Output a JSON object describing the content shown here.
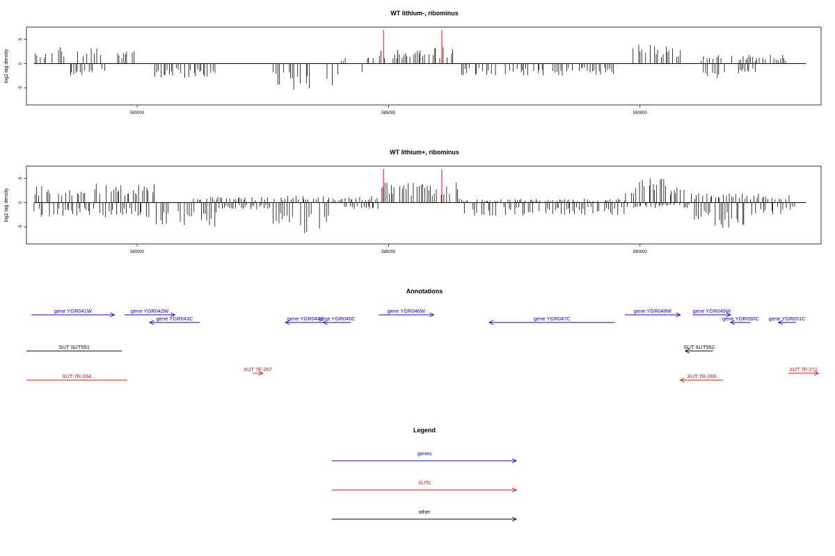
{
  "chart_data": [
    {
      "type": "bar",
      "title": "WT lithium-, ribominus",
      "ylabel": "log2 tag density",
      "xlim": [
        577800,
        593600
      ],
      "ylim": [
        -8.5,
        7.5
      ],
      "x_ticks": [
        580000,
        585000,
        590000
      ],
      "y_ticks": [
        5,
        0,
        -5
      ],
      "markers": [
        584900,
        586060
      ],
      "marker_color": "#ff0000",
      "segments": [
        {
          "start": 577950,
          "end": 578200,
          "strand": "+",
          "level": 2.0
        },
        {
          "start": 578300,
          "end": 578650,
          "strand": "+",
          "level": 2.6
        },
        {
          "start": 578650,
          "end": 579150,
          "strand": "-",
          "level": 1.8
        },
        {
          "start": 578800,
          "end": 579300,
          "strand": "+",
          "level": 2.6
        },
        {
          "start": 579300,
          "end": 579420,
          "strand": "-",
          "level": 2.0
        },
        {
          "start": 579600,
          "end": 579900,
          "strand": "+",
          "level": 2.0
        },
        {
          "start": 579850,
          "end": 580000,
          "strand": "+",
          "level": 2.4
        },
        {
          "start": 580250,
          "end": 581600,
          "strand": "-",
          "level": 2.1
        },
        {
          "start": 582700,
          "end": 583900,
          "strand": "-",
          "level": 3.9
        },
        {
          "start": 583900,
          "end": 584000,
          "strand": "-",
          "level": 2.5
        },
        {
          "start": 584050,
          "end": 584200,
          "strand": "+",
          "level": 1.0
        },
        {
          "start": 584450,
          "end": 584550,
          "strand": "-",
          "level": 2.2
        },
        {
          "start": 584550,
          "end": 584700,
          "strand": "+",
          "level": 1.6
        },
        {
          "start": 584800,
          "end": 586000,
          "strand": "+",
          "level": 2.3
        },
        {
          "start": 585900,
          "end": 586300,
          "strand": "+",
          "level": 2.5
        },
        {
          "start": 586400,
          "end": 589500,
          "strand": "-",
          "level": 1.8
        },
        {
          "start": 589800,
          "end": 590950,
          "strand": "+",
          "level": 2.9
        },
        {
          "start": 591200,
          "end": 591700,
          "strand": "-",
          "level": 2.4
        },
        {
          "start": 591200,
          "end": 592500,
          "strand": "+",
          "level": 1.3
        },
        {
          "start": 591900,
          "end": 592300,
          "strand": "-",
          "level": 1.5
        },
        {
          "start": 592500,
          "end": 593000,
          "strand": "+",
          "level": 1.3
        }
      ]
    },
    {
      "type": "bar",
      "title": "WT lithium+, ribominus",
      "ylabel": "log2 tag density",
      "xlim": [
        577800,
        593600
      ],
      "ylim": [
        -8.5,
        7.5
      ],
      "x_ticks": [
        580000,
        585000,
        590000
      ],
      "y_ticks": [
        5,
        0,
        -5
      ],
      "markers": [
        584900,
        586060
      ],
      "marker_color": "#ff0000",
      "segments": [
        {
          "start": 577950,
          "end": 580400,
          "strand": "+",
          "level": 2.8
        },
        {
          "start": 577950,
          "end": 580300,
          "strand": "-",
          "level": 2.2
        },
        {
          "start": 580300,
          "end": 581600,
          "strand": "-",
          "level": 3.6
        },
        {
          "start": 581100,
          "end": 582600,
          "strand": "+",
          "level": 0.9
        },
        {
          "start": 581600,
          "end": 582650,
          "strand": "-",
          "level": 1.0
        },
        {
          "start": 582650,
          "end": 584000,
          "strand": "-",
          "level": 4.6
        },
        {
          "start": 582700,
          "end": 584000,
          "strand": "+",
          "level": 1.0
        },
        {
          "start": 584000,
          "end": 584850,
          "strand": "-",
          "level": 1.0
        },
        {
          "start": 584000,
          "end": 584800,
          "strand": "+",
          "level": 1.0
        },
        {
          "start": 584800,
          "end": 586400,
          "strand": "+",
          "level": 3.0
        },
        {
          "start": 586400,
          "end": 589700,
          "strand": "-",
          "level": 1.9
        },
        {
          "start": 586400,
          "end": 589700,
          "strand": "+",
          "level": 0.6
        },
        {
          "start": 589700,
          "end": 591000,
          "strand": "+",
          "level": 3.6
        },
        {
          "start": 589700,
          "end": 591000,
          "strand": "-",
          "level": 0.8
        },
        {
          "start": 591000,
          "end": 592400,
          "strand": "-",
          "level": 3.8
        },
        {
          "start": 591000,
          "end": 593100,
          "strand": "+",
          "level": 1.4
        },
        {
          "start": 592400,
          "end": 593100,
          "strand": "-",
          "level": 1.8
        }
      ]
    }
  ],
  "annotations": {
    "title": "Annotations",
    "genes": [
      {
        "label": "gene YGR041W",
        "start": 577900,
        "end": 579550,
        "strand": "+"
      },
      {
        "label": "gene YGR042W",
        "start": 579750,
        "end": 580750,
        "strand": "+"
      },
      {
        "label": "gene YGR043C",
        "start": 580250,
        "end": 581250,
        "strand": "-"
      },
      {
        "label": "gene YGR044C",
        "start": 582950,
        "end": 583750,
        "strand": "-"
      },
      {
        "label": "gene YGR045C",
        "start": 583700,
        "end": 584250,
        "strand": "-"
      },
      {
        "label": "gene YGR046W",
        "start": 584800,
        "end": 585900,
        "strand": "+"
      },
      {
        "label": "gene YGR047C",
        "start": 587000,
        "end": 589500,
        "strand": "-"
      },
      {
        "label": "gene YGR048W",
        "start": 589700,
        "end": 590800,
        "strand": "+"
      },
      {
        "label": "gene YGR049W",
        "start": 591050,
        "end": 591800,
        "strand": "+"
      },
      {
        "label": "gene YGR050C",
        "start": 591800,
        "end": 592200,
        "strand": "-"
      },
      {
        "label": "gene YGR051C",
        "start": 592750,
        "end": 593100,
        "strand": "-"
      }
    ],
    "suts": [
      {
        "label": "SUT SUT551",
        "start": 577800,
        "end": 579700,
        "strand": "."
      },
      {
        "label": "SUT SUT552",
        "start": 590900,
        "end": 591450,
        "strand": "-"
      }
    ],
    "xuts": [
      {
        "label": "XUT 7R-264",
        "start": 577800,
        "end": 579800,
        "strand": "."
      },
      {
        "label": "XUT 7F-267",
        "start": 582300,
        "end": 582500,
        "strand": "+"
      },
      {
        "label": "XUT 7R-269",
        "start": 590800,
        "end": 591650,
        "strand": "-"
      },
      {
        "label": "XUT 7F-271",
        "start": 592950,
        "end": 593550,
        "strand": "+"
      }
    ]
  },
  "legend": {
    "title": "Legend",
    "items": [
      {
        "label": "genes",
        "color": "#0000ff"
      },
      {
        "label": "XUTs",
        "color": "#ff0000"
      },
      {
        "label": "other",
        "color": "#000000"
      }
    ]
  },
  "colors": {
    "gene": "#0000ff",
    "xut": "#ff0000",
    "sut": "#000000",
    "marker": "#ff0000",
    "axis": "#000000"
  }
}
